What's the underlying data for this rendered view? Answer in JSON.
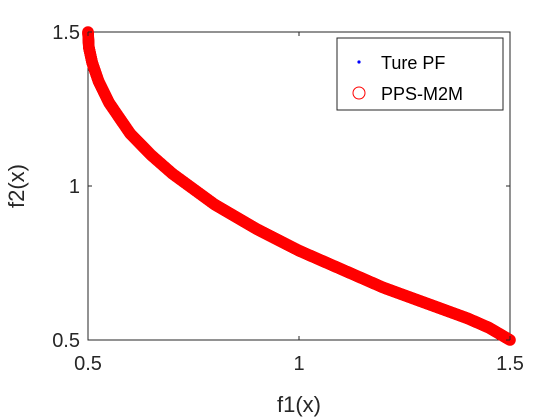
{
  "chart_data": {
    "type": "scatter",
    "title": "",
    "xlabel": "f1(x)",
    "ylabel": "f2(x)",
    "xlim": [
      0.5,
      1.5
    ],
    "ylim": [
      0.5,
      1.5
    ],
    "xticks": [
      0.5,
      1,
      1.5
    ],
    "yticks": [
      0.5,
      1,
      1.5
    ],
    "xtick_labels": [
      "0.5",
      "1",
      "1.5"
    ],
    "ytick_labels": [
      "0.5",
      "1",
      "1.5"
    ],
    "grid": false,
    "legend_position": "top-right",
    "series": [
      {
        "name": "Ture PF",
        "marker": "dot",
        "color": "#0000ff",
        "x": [
          0.5,
          0.502,
          0.51,
          0.525,
          0.55,
          0.6,
          0.65,
          0.7,
          0.75,
          0.8,
          0.9,
          1.0,
          1.1,
          1.2,
          1.3,
          1.4,
          1.45,
          1.5
        ],
        "y": [
          1.5,
          1.45,
          1.4,
          1.34,
          1.27,
          1.17,
          1.1,
          1.04,
          0.99,
          0.94,
          0.86,
          0.79,
          0.73,
          0.67,
          0.62,
          0.57,
          0.54,
          0.5
        ]
      },
      {
        "name": "PPS-M2M",
        "marker": "circle-open",
        "color": "#ff0000",
        "x": [
          0.5,
          0.502,
          0.51,
          0.525,
          0.55,
          0.6,
          0.65,
          0.7,
          0.75,
          0.8,
          0.9,
          1.0,
          1.1,
          1.2,
          1.3,
          1.4,
          1.45,
          1.5
        ],
        "y": [
          1.5,
          1.45,
          1.4,
          1.34,
          1.27,
          1.17,
          1.1,
          1.04,
          0.99,
          0.94,
          0.86,
          0.79,
          0.73,
          0.67,
          0.62,
          0.57,
          0.54,
          0.5
        ]
      }
    ]
  }
}
